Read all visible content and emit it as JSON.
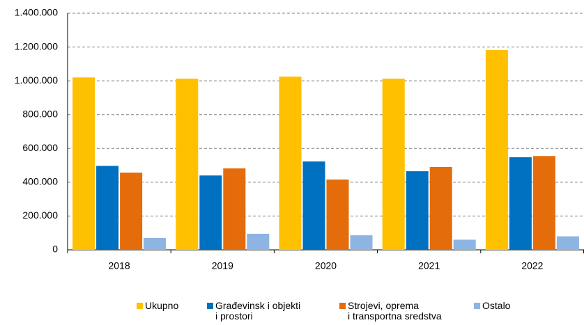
{
  "chart_data": {
    "type": "bar",
    "categories": [
      "2018",
      "2019",
      "2020",
      "2021",
      "2022"
    ],
    "series": [
      {
        "name": "Ukupno",
        "color": "#ffc000",
        "values": [
          1020000,
          1013000,
          1025000,
          1013000,
          1182000
        ]
      },
      {
        "name": "Građevinsk i objekti\ni prostori",
        "color": "#0070c0",
        "values": [
          497000,
          440000,
          523000,
          465000,
          548000
        ]
      },
      {
        "name": "Strojevi, oprema\ni transportna sredstva",
        "color": "#e46c0a",
        "values": [
          457000,
          482000,
          416000,
          490000,
          555000
        ]
      },
      {
        "name": "Ostalo",
        "color": "#8db4e2",
        "values": [
          70000,
          95000,
          86000,
          60000,
          80000
        ]
      }
    ],
    "ylim": [
      0,
      1400000
    ],
    "yticks": [
      0,
      {
        "value": 200000,
        "label": "200.000"
      },
      {
        "value": 400000,
        "label": "400.000"
      },
      {
        "value": 600000,
        "label": "600.000"
      },
      {
        "value": 800000,
        "label": "800.000"
      },
      {
        "value": 1000000,
        "label": "1.000.000"
      },
      {
        "value": 1200000,
        "label": "1.200.000"
      },
      {
        "value": 1400000,
        "label": "1.400.000"
      }
    ],
    "grid": true
  }
}
